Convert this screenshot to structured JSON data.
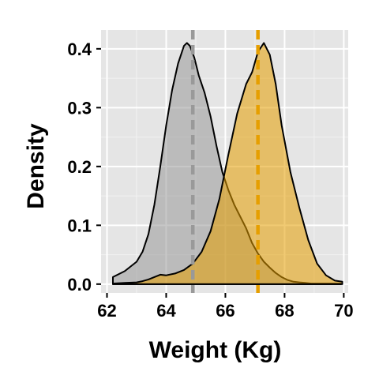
{
  "chart_data": {
    "type": "area",
    "title": "",
    "xlabel": "Weight (Kg)",
    "ylabel": "Density",
    "xlim": [
      61.8,
      70.15
    ],
    "ylim": [
      -0.015,
      0.432
    ],
    "x_ticks": [
      62,
      64,
      66,
      68,
      70
    ],
    "x_tick_labels": [
      "62",
      "64",
      "66",
      "68",
      "70"
    ],
    "y_ticks": [
      0.0,
      0.1,
      0.2,
      0.3,
      0.4
    ],
    "y_tick_labels": [
      "0.0",
      "0.1",
      "0.2",
      "0.3",
      "0.4"
    ],
    "grid": true,
    "legend": "none",
    "series": [
      {
        "fill": "#999999",
        "mean": 64.9,
        "x": [
          62.2,
          62.6,
          63.0,
          63.2,
          63.4,
          63.6,
          63.8,
          64.0,
          64.2,
          64.4,
          64.6,
          64.7,
          64.8,
          64.95,
          65.1,
          65.3,
          65.5,
          65.7,
          65.9,
          66.1,
          66.3,
          66.5,
          66.7,
          66.9,
          67.1,
          67.3,
          67.5,
          67.7,
          67.9,
          68.1,
          68.3,
          68.5,
          68.7,
          68.9,
          69.1,
          69.3,
          69.5,
          69.7,
          69.9
        ],
        "y": [
          0.012,
          0.022,
          0.038,
          0.055,
          0.085,
          0.135,
          0.2,
          0.27,
          0.33,
          0.375,
          0.405,
          0.41,
          0.405,
          0.385,
          0.355,
          0.325,
          0.285,
          0.235,
          0.19,
          0.16,
          0.135,
          0.115,
          0.095,
          0.07,
          0.052,
          0.038,
          0.028,
          0.019,
          0.012,
          0.007,
          0.004,
          0.003,
          0.002,
          0.001,
          0.001,
          0.001,
          0.001,
          0.001,
          0.001
        ]
      },
      {
        "fill": "#E69F00",
        "mean": 67.1,
        "x": [
          62.2,
          62.6,
          63.0,
          63.2,
          63.4,
          63.6,
          63.8,
          64.0,
          64.3,
          64.6,
          64.9,
          65.2,
          65.5,
          65.8,
          66.1,
          66.4,
          66.7,
          66.9,
          67.1,
          67.3,
          67.5,
          67.7,
          67.9,
          68.2,
          68.5,
          68.8,
          69.1,
          69.4,
          69.7,
          69.95
        ],
        "y": [
          0.001,
          0.002,
          0.003,
          0.005,
          0.008,
          0.012,
          0.016,
          0.015,
          0.018,
          0.024,
          0.035,
          0.055,
          0.09,
          0.145,
          0.22,
          0.29,
          0.34,
          0.36,
          0.395,
          0.41,
          0.39,
          0.34,
          0.27,
          0.19,
          0.13,
          0.075,
          0.035,
          0.015,
          0.006,
          0.004
        ]
      }
    ]
  }
}
